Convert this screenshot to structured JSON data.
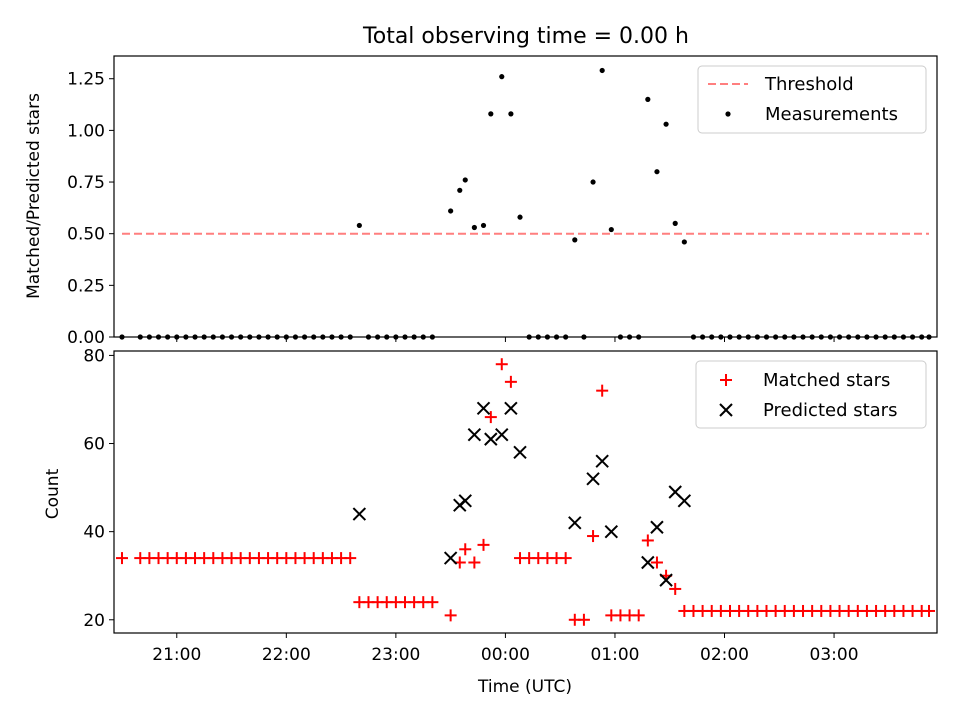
{
  "chart_data": [
    {
      "type": "scatter",
      "title": "Total observing time = 0.00 h",
      "xlabel": "",
      "ylabel": "Matched/Predicted stars",
      "xlim": [
        "20:30",
        "03:52"
      ],
      "ylim": [
        0,
        1.36
      ],
      "yticks": [
        "0.00",
        "0.25",
        "0.50",
        "0.75",
        "1.00",
        "1.25"
      ],
      "legend_position": "top-right",
      "colors": {
        "threshold": "#ff7f7f",
        "measurements": "#000000"
      },
      "threshold": {
        "name": "Threshold",
        "value": 0.5,
        "x_range": [
          "20:30",
          "03:52"
        ]
      },
      "series": [
        {
          "name": "Measurements",
          "points": [
            [
              "20:30",
              0
            ],
            [
              "20:40",
              0
            ],
            [
              "20:45",
              0
            ],
            [
              "20:50",
              0
            ],
            [
              "20:55",
              0
            ],
            [
              "21:00",
              0
            ],
            [
              "21:05",
              0
            ],
            [
              "21:10",
              0
            ],
            [
              "21:15",
              0
            ],
            [
              "21:20",
              0
            ],
            [
              "21:25",
              0
            ],
            [
              "21:30",
              0
            ],
            [
              "21:35",
              0
            ],
            [
              "21:40",
              0
            ],
            [
              "21:45",
              0
            ],
            [
              "21:50",
              0
            ],
            [
              "21:55",
              0
            ],
            [
              "22:00",
              0
            ],
            [
              "22:05",
              0
            ],
            [
              "22:10",
              0
            ],
            [
              "22:15",
              0
            ],
            [
              "22:20",
              0
            ],
            [
              "22:25",
              0
            ],
            [
              "22:30",
              0
            ],
            [
              "22:35",
              0
            ],
            [
              "22:40",
              0.54
            ],
            [
              "22:45",
              0
            ],
            [
              "22:50",
              0
            ],
            [
              "22:55",
              0
            ],
            [
              "23:00",
              0
            ],
            [
              "23:05",
              0
            ],
            [
              "23:10",
              0
            ],
            [
              "23:15",
              0
            ],
            [
              "23:20",
              0
            ],
            [
              "23:30",
              0.61
            ],
            [
              "23:35",
              0.71
            ],
            [
              "23:38",
              0.76
            ],
            [
              "23:43",
              0.53
            ],
            [
              "23:48",
              0.54
            ],
            [
              "23:52",
              1.08
            ],
            [
              "23:58",
              1.26
            ],
            [
              "00:03",
              1.08
            ],
            [
              "00:08",
              0.58
            ],
            [
              "00:13",
              0
            ],
            [
              "00:18",
              0
            ],
            [
              "00:23",
              0
            ],
            [
              "00:28",
              0
            ],
            [
              "00:33",
              0
            ],
            [
              "00:38",
              0.47
            ],
            [
              "00:43",
              0
            ],
            [
              "00:48",
              0.75
            ],
            [
              "00:53",
              1.29
            ],
            [
              "00:58",
              0.52
            ],
            [
              "01:03",
              0
            ],
            [
              "01:08",
              0
            ],
            [
              "01:13",
              0
            ],
            [
              "01:18",
              1.15
            ],
            [
              "01:23",
              0.8
            ],
            [
              "01:28",
              1.03
            ],
            [
              "01:33",
              0.55
            ],
            [
              "01:38",
              0.46
            ],
            [
              "01:43",
              0
            ],
            [
              "01:48",
              0
            ],
            [
              "01:53",
              0
            ],
            [
              "01:58",
              0
            ],
            [
              "02:03",
              0
            ],
            [
              "02:08",
              0
            ],
            [
              "02:13",
              0
            ],
            [
              "02:18",
              0
            ],
            [
              "02:23",
              0
            ],
            [
              "02:28",
              0
            ],
            [
              "02:33",
              0
            ],
            [
              "02:38",
              0
            ],
            [
              "02:43",
              0
            ],
            [
              "02:48",
              0
            ],
            [
              "02:53",
              0
            ],
            [
              "02:58",
              0
            ],
            [
              "03:03",
              0
            ],
            [
              "03:08",
              0
            ],
            [
              "03:13",
              0
            ],
            [
              "03:18",
              0
            ],
            [
              "03:23",
              0
            ],
            [
              "03:28",
              0
            ],
            [
              "03:33",
              0
            ],
            [
              "03:38",
              0
            ],
            [
              "03:43",
              0
            ],
            [
              "03:48",
              0
            ],
            [
              "03:52",
              0
            ]
          ]
        }
      ]
    },
    {
      "type": "scatter",
      "title": "",
      "xlabel": "Time (UTC)",
      "ylabel": "Count",
      "xlim": [
        "20:30",
        "03:52"
      ],
      "ylim": [
        17,
        81
      ],
      "xticks": [
        "21:00",
        "22:00",
        "23:00",
        "00:00",
        "01:00",
        "02:00",
        "03:00"
      ],
      "yticks": [
        "20",
        "40",
        "60",
        "80"
      ],
      "legend_position": "top-right",
      "colors": {
        "matched": "#ff0000",
        "predicted": "#000000"
      },
      "series": [
        {
          "name": "Matched stars",
          "marker": "+",
          "points": [
            [
              "20:30",
              34
            ],
            [
              "20:40",
              34
            ],
            [
              "20:45",
              34
            ],
            [
              "20:50",
              34
            ],
            [
              "20:55",
              34
            ],
            [
              "21:00",
              34
            ],
            [
              "21:05",
              34
            ],
            [
              "21:10",
              34
            ],
            [
              "21:15",
              34
            ],
            [
              "21:20",
              34
            ],
            [
              "21:25",
              34
            ],
            [
              "21:30",
              34
            ],
            [
              "21:35",
              34
            ],
            [
              "21:40",
              34
            ],
            [
              "21:45",
              34
            ],
            [
              "21:50",
              34
            ],
            [
              "21:55",
              34
            ],
            [
              "22:00",
              34
            ],
            [
              "22:05",
              34
            ],
            [
              "22:10",
              34
            ],
            [
              "22:15",
              34
            ],
            [
              "22:20",
              34
            ],
            [
              "22:25",
              34
            ],
            [
              "22:30",
              34
            ],
            [
              "22:35",
              34
            ],
            [
              "22:40",
              24
            ],
            [
              "22:45",
              24
            ],
            [
              "22:50",
              24
            ],
            [
              "22:55",
              24
            ],
            [
              "23:00",
              24
            ],
            [
              "23:05",
              24
            ],
            [
              "23:10",
              24
            ],
            [
              "23:15",
              24
            ],
            [
              "23:20",
              24
            ],
            [
              "23:30",
              21
            ],
            [
              "23:35",
              33
            ],
            [
              "23:38",
              36
            ],
            [
              "23:43",
              33
            ],
            [
              "23:48",
              37
            ],
            [
              "23:52",
              66
            ],
            [
              "23:58",
              78
            ],
            [
              "00:03",
              74
            ],
            [
              "00:08",
              34
            ],
            [
              "00:13",
              34
            ],
            [
              "00:18",
              34
            ],
            [
              "00:23",
              34
            ],
            [
              "00:28",
              34
            ],
            [
              "00:33",
              34
            ],
            [
              "00:38",
              20
            ],
            [
              "00:43",
              20
            ],
            [
              "00:48",
              39
            ],
            [
              "00:53",
              72
            ],
            [
              "00:58",
              21
            ],
            [
              "01:03",
              21
            ],
            [
              "01:08",
              21
            ],
            [
              "01:13",
              21
            ],
            [
              "01:18",
              38
            ],
            [
              "01:23",
              33
            ],
            [
              "01:28",
              30
            ],
            [
              "01:33",
              27
            ],
            [
              "01:38",
              22
            ],
            [
              "01:43",
              22
            ],
            [
              "01:48",
              22
            ],
            [
              "01:53",
              22
            ],
            [
              "01:58",
              22
            ],
            [
              "02:03",
              22
            ],
            [
              "02:08",
              22
            ],
            [
              "02:13",
              22
            ],
            [
              "02:18",
              22
            ],
            [
              "02:23",
              22
            ],
            [
              "02:28",
              22
            ],
            [
              "02:33",
              22
            ],
            [
              "02:38",
              22
            ],
            [
              "02:43",
              22
            ],
            [
              "02:48",
              22
            ],
            [
              "02:53",
              22
            ],
            [
              "02:58",
              22
            ],
            [
              "03:03",
              22
            ],
            [
              "03:08",
              22
            ],
            [
              "03:13",
              22
            ],
            [
              "03:18",
              22
            ],
            [
              "03:23",
              22
            ],
            [
              "03:28",
              22
            ],
            [
              "03:33",
              22
            ],
            [
              "03:38",
              22
            ],
            [
              "03:43",
              22
            ],
            [
              "03:48",
              22
            ],
            [
              "03:52",
              22
            ]
          ]
        },
        {
          "name": "Predicted stars",
          "marker": "x",
          "points": [
            [
              "22:40",
              44
            ],
            [
              "23:30",
              34
            ],
            [
              "23:35",
              46
            ],
            [
              "23:38",
              47
            ],
            [
              "23:43",
              62
            ],
            [
              "23:48",
              68
            ],
            [
              "23:52",
              61
            ],
            [
              "23:58",
              62
            ],
            [
              "00:03",
              68
            ],
            [
              "00:08",
              58
            ],
            [
              "00:38",
              42
            ],
            [
              "00:48",
              52
            ],
            [
              "00:53",
              56
            ],
            [
              "00:58",
              40
            ],
            [
              "01:18",
              33
            ],
            [
              "01:23",
              41
            ],
            [
              "01:28",
              29
            ],
            [
              "01:33",
              49
            ],
            [
              "01:38",
              47
            ]
          ]
        }
      ]
    }
  ]
}
